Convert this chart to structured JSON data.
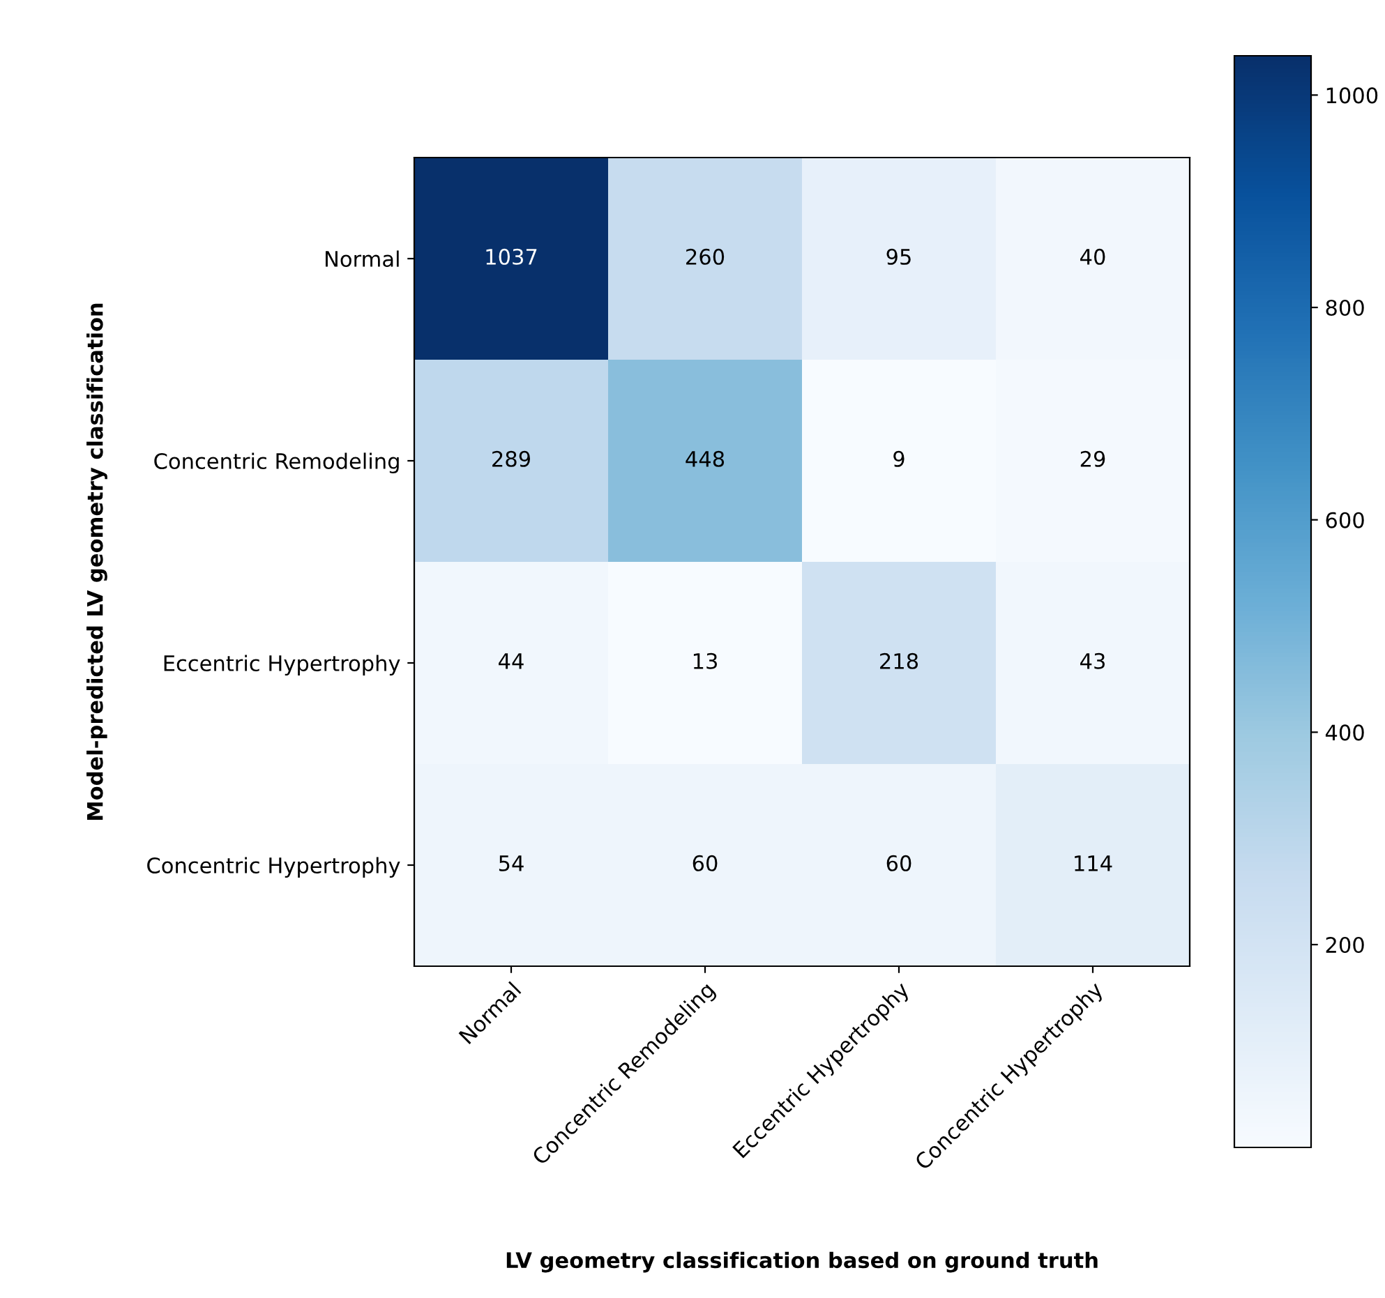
{
  "chart_data": {
    "type": "heatmap",
    "xlabel": "LV geometry classification based on ground truth",
    "ylabel": "Model-predicted LV geometry classification",
    "categories": [
      "Normal",
      "Concentric Remodeling",
      "Eccentric Hypertrophy",
      "Concentric Hypertrophy"
    ],
    "y_categories": [
      "Normal",
      "Concentric Remodeling",
      "Eccentric Hypertrophy",
      "Concentric Hypertrophy"
    ],
    "cells": [
      [
        1037,
        260,
        95,
        40
      ],
      [
        289,
        448,
        9,
        29
      ],
      [
        44,
        13,
        218,
        43
      ],
      [
        54,
        60,
        60,
        114
      ]
    ],
    "data_labels": true,
    "clim": [
      9,
      1037
    ],
    "cticks": [
      200,
      400,
      600,
      800,
      1000
    ]
  }
}
